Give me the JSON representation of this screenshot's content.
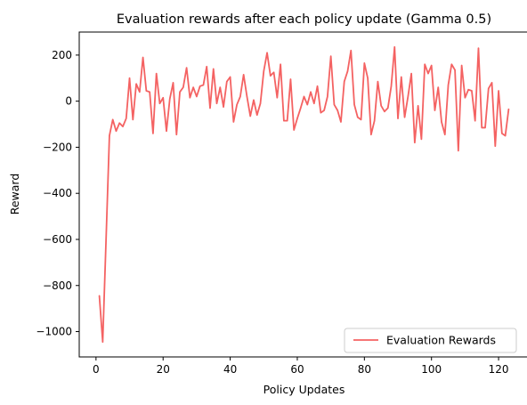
{
  "chart_data": {
    "type": "line",
    "title": "Evaluation rewards after each policy update (Gamma 0.5)",
    "xlabel": "Policy Updates",
    "ylabel": "Reward",
    "xlim": [
      -5,
      129
    ],
    "ylim": [
      -1110,
      300
    ],
    "x_ticks": [
      0,
      20,
      40,
      60,
      80,
      100,
      120
    ],
    "y_ticks": [
      -1000,
      -800,
      -600,
      -400,
      -200,
      0,
      200
    ],
    "y_tick_labels": [
      "−1000",
      "−800",
      "−600",
      "−400",
      "−200",
      "0",
      "200"
    ],
    "grid": false,
    "legend": "lower-right",
    "series": [
      {
        "name": "Evaluation Rewards",
        "color": "#f46262",
        "x": [
          1,
          2,
          3,
          4,
          5,
          6,
          7,
          8,
          9,
          10,
          11,
          12,
          13,
          14,
          15,
          16,
          17,
          18,
          19,
          20,
          21,
          22,
          23,
          24,
          25,
          26,
          27,
          28,
          29,
          30,
          31,
          32,
          33,
          34,
          35,
          36,
          37,
          38,
          39,
          40,
          41,
          42,
          43,
          44,
          45,
          46,
          47,
          48,
          49,
          50,
          51,
          52,
          53,
          54,
          55,
          56,
          57,
          58,
          59,
          60,
          61,
          62,
          63,
          64,
          65,
          66,
          67,
          68,
          69,
          70,
          71,
          72,
          73,
          74,
          75,
          76,
          77,
          78,
          79,
          80,
          81,
          82,
          83,
          84,
          85,
          86,
          87,
          88,
          89,
          90,
          91,
          92,
          93,
          94,
          95,
          96,
          97,
          98,
          99,
          100,
          101,
          102,
          103,
          104,
          105,
          106,
          107,
          108,
          109,
          110,
          111,
          112,
          113,
          114,
          115,
          116,
          117,
          118,
          119,
          120,
          121,
          122,
          123
        ],
        "values": [
          -845,
          -1045,
          -600,
          -150,
          -80,
          -130,
          -95,
          -110,
          -75,
          100,
          -80,
          75,
          40,
          190,
          45,
          40,
          -140,
          120,
          -10,
          15,
          -130,
          10,
          80,
          -145,
          40,
          60,
          145,
          15,
          60,
          20,
          65,
          70,
          150,
          -30,
          140,
          -10,
          60,
          -25,
          85,
          105,
          -90,
          -15,
          20,
          115,
          20,
          -65,
          5,
          -60,
          -10,
          130,
          210,
          110,
          125,
          15,
          160,
          -85,
          -85,
          95,
          -125,
          -75,
          -30,
          20,
          -15,
          40,
          -10,
          65,
          -50,
          -40,
          20,
          195,
          -15,
          -40,
          -90,
          85,
          130,
          220,
          -15,
          -70,
          -80,
          165,
          100,
          -145,
          -85,
          85,
          -20,
          -45,
          -30,
          65,
          235,
          -75,
          105,
          -70,
          20,
          120,
          -180,
          -20,
          -165,
          160,
          120,
          155,
          -40,
          60,
          -90,
          -145,
          70,
          160,
          135,
          -215,
          155,
          15,
          50,
          45,
          -85,
          230,
          -115,
          -115,
          55,
          80,
          -195,
          45,
          -140,
          -150,
          -35
        ]
      }
    ]
  }
}
